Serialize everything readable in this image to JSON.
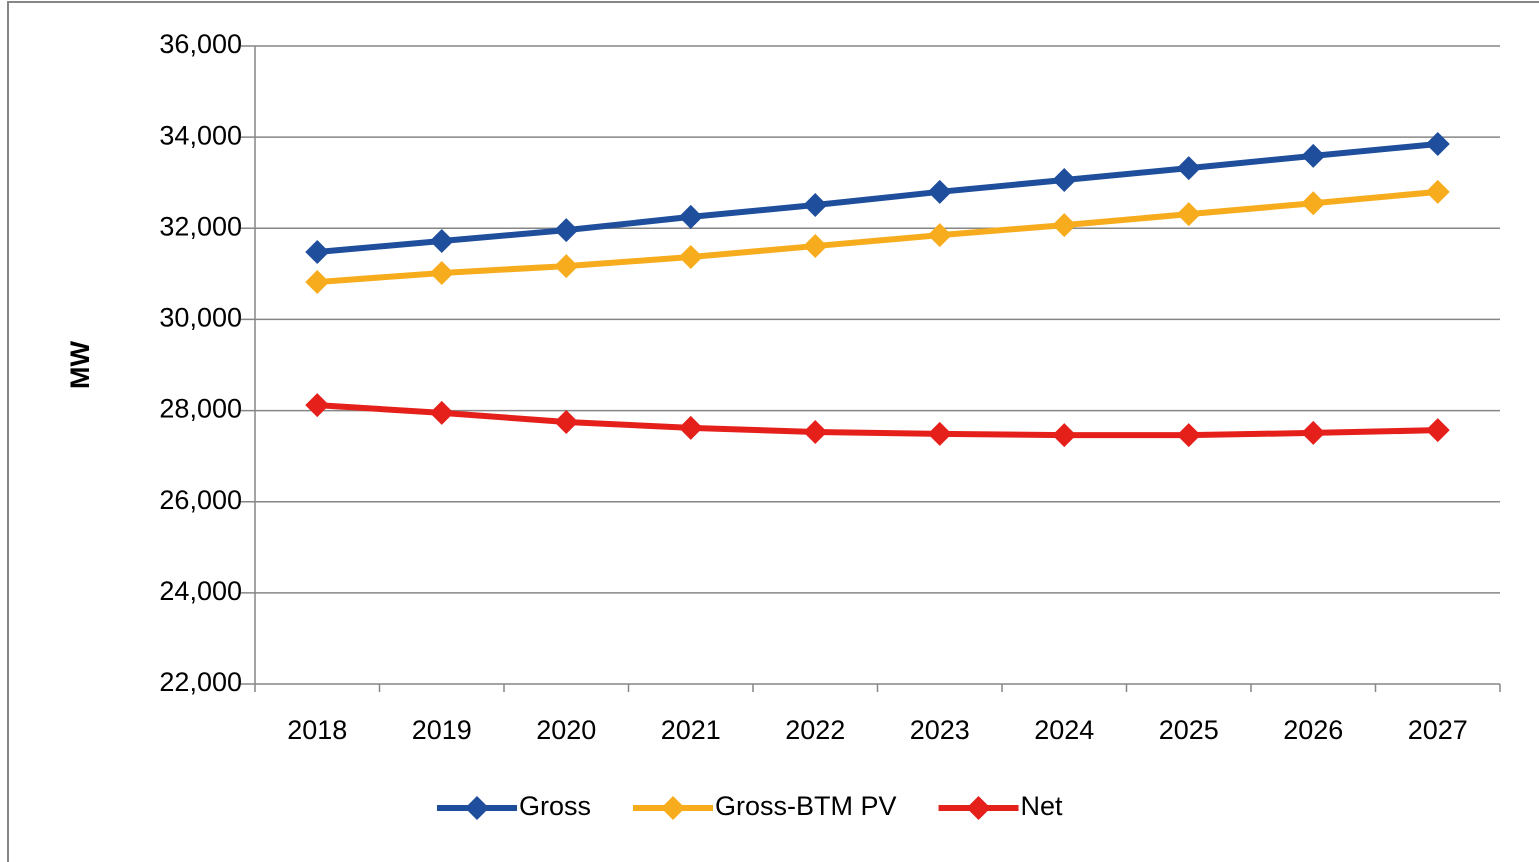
{
  "chart_data": {
    "type": "line",
    "y_label": "MW",
    "categories": [
      "2018",
      "2019",
      "2020",
      "2021",
      "2022",
      "2023",
      "2024",
      "2025",
      "2026",
      "2027"
    ],
    "series": [
      {
        "name": "Gross",
        "color": "#1f4e9c",
        "values": [
          31480,
          31720,
          31960,
          32250,
          32510,
          32800,
          33060,
          33320,
          33590,
          33850
        ]
      },
      {
        "name": "Gross-BTM PV",
        "color": "#f7ac1e",
        "values": [
          30820,
          31020,
          31170,
          31370,
          31610,
          31850,
          32070,
          32310,
          32550,
          32800
        ]
      },
      {
        "name": "Net",
        "color": "#e5201b",
        "values": [
          28120,
          27950,
          27750,
          27620,
          27530,
          27490,
          27460,
          27460,
          27510,
          27570
        ]
      }
    ],
    "ylim": [
      22000,
      36000
    ],
    "yticks": [
      {
        "value": 22000,
        "label": "22,000"
      },
      {
        "value": 24000,
        "label": "24,000"
      },
      {
        "value": 26000,
        "label": "26,000"
      },
      {
        "value": 28000,
        "label": "28,000"
      },
      {
        "value": 30000,
        "label": "30,000"
      },
      {
        "value": 32000,
        "label": "32,000"
      },
      {
        "value": 34000,
        "label": "34,000"
      },
      {
        "value": 36000,
        "label": "36,000"
      }
    ],
    "grid": true,
    "legend": "bottom"
  }
}
